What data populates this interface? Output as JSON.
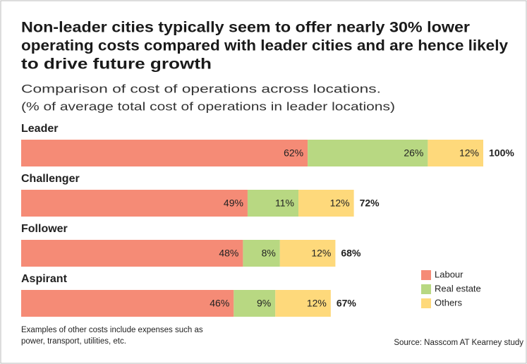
{
  "chart_data": {
    "type": "stacked_bar_horizontal",
    "title": [
      "Non-leader cities typically seem to offer nearly 30% lower",
      "operating costs compared with leader cities and are hence likely",
      "to drive future growth"
    ],
    "subtitle": [
      "Comparison of cost of operations across locations.",
      "(% of average total cost of operations in leader locations)"
    ],
    "categories": [
      "Leader",
      "Challenger",
      "Follower",
      "Aspirant"
    ],
    "series": [
      {
        "name": "Labour",
        "color": "#f58b76",
        "values": [
          62,
          49,
          48,
          46
        ],
        "value_labels": [
          "62%",
          "49%",
          "48%",
          "46%"
        ]
      },
      {
        "name": "Real estate",
        "color": "#b8d882",
        "values": [
          26,
          11,
          8,
          9
        ],
        "value_labels": [
          "26%",
          "11%",
          "8%",
          "9%"
        ]
      },
      {
        "name": "Others",
        "color": "#fed97b",
        "values": [
          12,
          12,
          12,
          12
        ],
        "value_labels": [
          "12%",
          "12%",
          "12%",
          "12%"
        ]
      }
    ],
    "totals": {
      "values": [
        100,
        72,
        68,
        67
      ],
      "value_labels": [
        "100%",
        "72%",
        "68%",
        "67%"
      ]
    },
    "xlim": [
      0,
      100
    ],
    "legend": "lower-right",
    "notes": [
      "Examples of other costs include expenses such as",
      "power, transport, utilities, etc."
    ],
    "source": "Source: Nasscom AT Kearney study"
  }
}
